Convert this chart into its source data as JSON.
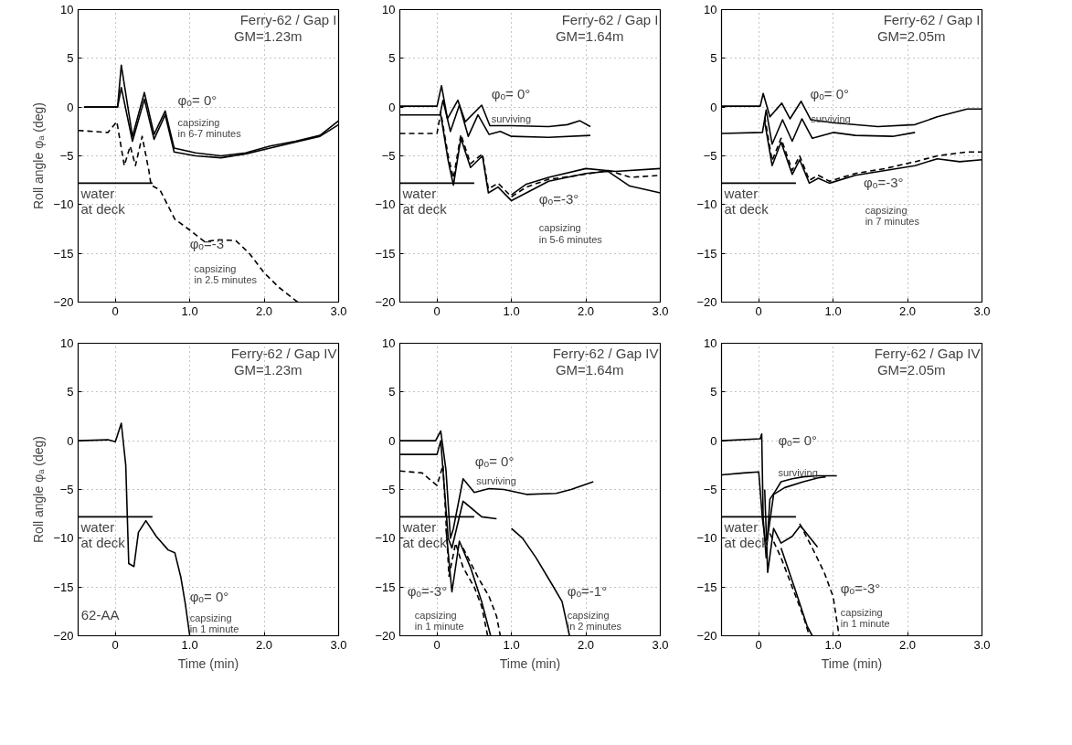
{
  "chart_data": [
    {
      "type": "line",
      "title": "Ferry-62 / Gap I",
      "subtitle": "GM=1.23m",
      "ylabel": "Roll angle φₐ (deg)",
      "xlim": [
        -0.5,
        3.0
      ],
      "ylim": [
        -20,
        10
      ],
      "xticks": [
        {
          "value": 0,
          "label": "0"
        },
        {
          "value": 1,
          "label": "1.0"
        },
        {
          "value": 2,
          "label": "2.0"
        },
        {
          "value": 3,
          "label": "3.0"
        }
      ],
      "yticks": [
        -20,
        -15,
        -10,
        -5,
        0,
        5,
        10
      ],
      "grid": true,
      "series": [
        {
          "color": "#000000",
          "line_style": "solid",
          "x": [
            -0.42,
            0.03,
            0.08,
            0.23,
            0.39,
            0.52,
            0.67,
            0.79,
            1.08,
            1.42,
            1.75,
            2.08,
            2.42,
            2.75,
            3.0
          ],
          "values": [
            0,
            0,
            4.3,
            -3,
            1.5,
            -2.8,
            -0.4,
            -4.2,
            -4.7,
            -5,
            -4.7,
            -4,
            -3.5,
            -2.9,
            -1.4
          ]
        },
        {
          "color": "#000000",
          "line_style": "solid",
          "x": [
            -0.42,
            0.03,
            0.08,
            0.23,
            0.39,
            0.52,
            0.67,
            0.79,
            1.08,
            1.42,
            1.75,
            2.08,
            2.42,
            2.75,
            3.0
          ],
          "values": [
            0,
            0,
            2.0,
            -3.5,
            0.8,
            -3.3,
            -0.8,
            -4.6,
            -5.0,
            -5.2,
            -4.8,
            -4.2,
            -3.6,
            -3.0,
            -1.8
          ]
        },
        {
          "color": "#000000",
          "line_style": "dashed",
          "x": [
            -0.5,
            -0.1,
            0.02,
            0.12,
            0.2,
            0.27,
            0.36,
            0.45,
            0.48,
            0.6,
            0.8,
            0.98,
            1.2,
            1.4,
            1.62,
            1.8,
            2.0,
            2.2,
            2.45
          ],
          "values": [
            -2.4,
            -2.6,
            -1.5,
            -6.0,
            -4,
            -6,
            -3,
            -6.5,
            -8,
            -8.5,
            -11.5,
            -12.5,
            -13.8,
            -13.6,
            -13.7,
            -15,
            -17,
            -18.5,
            -20
          ]
        },
        {
          "name": "water\nat deck",
          "color": "#000000",
          "line_style": "solid",
          "x": [
            -0.5,
            0.5
          ],
          "values": [
            -7.8,
            -7.8
          ]
        }
      ],
      "annotations": [
        "φₒ= 0°",
        "capsizing\nin 6-7 minutes",
        "φₒ=-3",
        "capsizing\nin 2.5 minutes"
      ]
    },
    {
      "type": "line",
      "title": "Ferry-62 / Gap I",
      "subtitle": "GM=1.64m",
      "xlim": [
        -0.5,
        3.0
      ],
      "ylim": [
        -20,
        10
      ],
      "xticks": [
        {
          "value": 0,
          "label": "0"
        },
        {
          "value": 1,
          "label": "1.0"
        },
        {
          "value": 2,
          "label": "2.0"
        },
        {
          "value": 3,
          "label": "3.0"
        }
      ],
      "yticks": [
        -20,
        -15,
        -10,
        -5,
        0,
        5,
        10
      ],
      "grid": true,
      "series": [
        {
          "color": "#000000",
          "line_style": "solid",
          "x": [
            -0.5,
            0.0,
            0.06,
            0.14,
            0.28,
            0.38,
            0.6,
            0.71,
            1.0,
            1.5,
            1.75,
            1.92,
            2.06
          ],
          "values": [
            0.1,
            0.1,
            2.2,
            -1.2,
            0.7,
            -1.5,
            0.2,
            -1.9,
            -1.9,
            -2.0,
            -1.8,
            -1.4,
            -2.0
          ]
        },
        {
          "color": "#000000",
          "line_style": "solid",
          "x": [
            -0.5,
            0.04,
            0.08,
            0.18,
            0.3,
            0.42,
            0.55,
            0.7,
            0.85,
            1.0,
            1.5,
            2.06
          ],
          "values": [
            -0.8,
            -0.8,
            0.7,
            -2.5,
            0.2,
            -3,
            -0.8,
            -2.8,
            -2.5,
            -3.0,
            -3.1,
            -2.9
          ]
        },
        {
          "color": "#000000",
          "line_style": "dashed",
          "x": [
            -0.5,
            0.0,
            0.05,
            0.15,
            0.22,
            0.32,
            0.45,
            0.61,
            0.69,
            0.82,
            1.0,
            1.2,
            1.5,
            1.9,
            2.3,
            2.6,
            3.0
          ],
          "values": [
            -2.7,
            -2.7,
            -0.5,
            -5,
            -7.3,
            -2.8,
            -5.8,
            -4.8,
            -8.4,
            -7.8,
            -9.2,
            -8.2,
            -7.4,
            -7.0,
            -6.5,
            -7.2,
            -7.0
          ]
        },
        {
          "color": "#000000",
          "line_style": "solid",
          "x": [
            0.05,
            0.15,
            0.22,
            0.32,
            0.45,
            0.61,
            0.69,
            0.82,
            1.0,
            1.5,
            2.0,
            2.3,
            2.59,
            3.0
          ],
          "values": [
            -0.8,
            -5.5,
            -8.0,
            -3.2,
            -6.2,
            -5.0,
            -8.8,
            -8.2,
            -9.6,
            -7.6,
            -6.8,
            -6.6,
            -8.1,
            -8.8
          ]
        },
        {
          "color": "#000000",
          "line_style": "solid",
          "x": [
            1.0,
            1.2,
            1.5,
            2.0,
            2.4,
            3.0
          ],
          "values": [
            -9.0,
            -7.9,
            -7.2,
            -6.3,
            -6.6,
            -6.3
          ]
        },
        {
          "name": "water\nat deck",
          "color": "#000000",
          "line_style": "solid",
          "x": [
            -0.5,
            0.5
          ],
          "values": [
            -7.8,
            -7.8
          ]
        }
      ],
      "annotations": [
        "φₒ= 0°",
        "surviving",
        "φₒ=-3°",
        "capsizing\nin 5-6 minutes"
      ]
    },
    {
      "type": "line",
      "title": "Ferry-62 / Gap I",
      "subtitle": "GM=2.05m",
      "xlim": [
        -0.5,
        3.0
      ],
      "ylim": [
        -20,
        10
      ],
      "xticks": [
        {
          "value": 0,
          "label": "0"
        },
        {
          "value": 1,
          "label": "1.0"
        },
        {
          "value": 2,
          "label": "2.0"
        },
        {
          "value": 3,
          "label": "3.0"
        }
      ],
      "yticks": [
        -20,
        -15,
        -10,
        -5,
        0,
        5,
        10
      ],
      "grid": true,
      "series": [
        {
          "color": "#000000",
          "line_style": "solid",
          "x": [
            -0.5,
            0.02,
            0.06,
            0.15,
            0.31,
            0.42,
            0.57,
            0.7,
            1.0,
            1.6,
            2.1,
            2.4,
            2.8,
            3.0
          ],
          "values": [
            0.1,
            0.1,
            1.4,
            -1.0,
            0.4,
            -1.2,
            0.6,
            -1.3,
            -1.6,
            -2.0,
            -1.8,
            -1.0,
            -0.2,
            -0.2
          ]
        },
        {
          "color": "#000000",
          "line_style": "solid",
          "x": [
            -0.5,
            0.05,
            0.1,
            0.18,
            0.32,
            0.45,
            0.58,
            0.72,
            1.0,
            1.3,
            1.8,
            2.1
          ],
          "values": [
            -2.7,
            -2.6,
            -0.3,
            -3.8,
            -1.3,
            -3.5,
            -1.2,
            -3.2,
            -2.6,
            -2.9,
            -3.0,
            -2.6
          ]
        },
        {
          "color": "#000000",
          "line_style": "dashed",
          "x": [
            0.08,
            0.18,
            0.3,
            0.45,
            0.55,
            0.68,
            0.8,
            0.95,
            1.3,
            1.7,
            2.1,
            2.4,
            2.8,
            3.0
          ],
          "values": [
            -1,
            -5.5,
            -3.2,
            -6.5,
            -5,
            -7.5,
            -7.0,
            -7.6,
            -6.8,
            -6.3,
            -5.6,
            -5.0,
            -4.6,
            -4.6
          ]
        },
        {
          "color": "#000000",
          "line_style": "solid",
          "x": [
            0.08,
            0.18,
            0.3,
            0.45,
            0.55,
            0.68,
            0.8,
            0.95,
            1.3,
            1.7,
            2.1,
            2.4,
            2.7,
            3.0
          ],
          "values": [
            -1.5,
            -6.0,
            -3.6,
            -6.9,
            -5.4,
            -7.8,
            -7.3,
            -7.8,
            -7.0,
            -6.5,
            -6.0,
            -5.3,
            -5.6,
            -5.4
          ]
        },
        {
          "name": "water\nat deck",
          "color": "#000000",
          "line_style": "solid",
          "x": [
            -0.5,
            0.5
          ],
          "values": [
            -7.8,
            -7.8
          ]
        }
      ],
      "annotations": [
        "φₒ= 0°",
        "surviving",
        "φₒ=-3°",
        "capsizing\nin 7 minutes"
      ]
    },
    {
      "type": "line",
      "title": "Ferry-62 / Gap IV",
      "subtitle": "GM=1.23m",
      "xlabel": "Time (min)",
      "ylabel": "Roll angle φₐ (deg)",
      "xlim": [
        -0.5,
        3.0
      ],
      "ylim": [
        -20,
        10
      ],
      "xticks": [
        {
          "value": 0,
          "label": "0"
        },
        {
          "value": 1,
          "label": "1.0"
        },
        {
          "value": 2,
          "label": "2.0"
        },
        {
          "value": 3,
          "label": "3.0"
        }
      ],
      "yticks": [
        -20,
        -15,
        -10,
        -5,
        0,
        5,
        10
      ],
      "grid": true,
      "series": [
        {
          "color": "#000000",
          "line_style": "solid",
          "x": [
            -0.5,
            -0.1,
            0.0,
            0.08,
            0.14,
            0.18,
            0.25,
            0.31,
            0.41,
            0.55,
            0.71,
            0.8,
            0.88,
            0.94,
            1.0
          ],
          "values": [
            0,
            0.1,
            -0.1,
            1.8,
            -2.5,
            -12.6,
            -12.9,
            -9.4,
            -8.2,
            -9.8,
            -11.2,
            -11.5,
            -14,
            -16.7,
            -20
          ]
        },
        {
          "name": "water\nat deck",
          "color": "#000000",
          "line_style": "solid",
          "x": [
            -0.5,
            0.5
          ],
          "values": [
            -7.8,
            -7.8
          ]
        }
      ],
      "annotations": [
        "φₒ= 0°",
        "capsizing\nin 1 minute",
        "62-AA"
      ]
    },
    {
      "type": "line",
      "title": "Ferry-62 / Gap IV",
      "subtitle": "GM=1.64m",
      "xlabel": "Time (min)",
      "xlim": [
        -0.5,
        3.0
      ],
      "ylim": [
        -20,
        10
      ],
      "xticks": [
        {
          "value": 0,
          "label": "0"
        },
        {
          "value": 1,
          "label": "1.0"
        },
        {
          "value": 2,
          "label": "2.0"
        },
        {
          "value": 3,
          "label": "3.0"
        }
      ],
      "yticks": [
        -20,
        -15,
        -10,
        -5,
        0,
        5,
        10
      ],
      "grid": true,
      "series": [
        {
          "color": "#000000",
          "line_style": "solid",
          "x": [
            -0.5,
            -0.02,
            0.05,
            0.12,
            0.18,
            0.22,
            0.35,
            0.5,
            0.7,
            0.9,
            1.2,
            1.6,
            1.8,
            2.1
          ],
          "values": [
            0,
            0,
            1.0,
            -3,
            -10,
            -9,
            -3.9,
            -5.3,
            -4.9,
            -5.0,
            -5.5,
            -5.4,
            -5.0,
            -4.2
          ]
        },
        {
          "color": "#000000",
          "line_style": "solid",
          "x": [
            -0.5,
            0.0,
            0.05,
            0.15,
            0.2,
            0.35,
            0.6,
            0.8,
            0.9,
            1.0,
            1.15,
            1.33,
            1.55,
            1.68,
            1.78
          ],
          "values": [
            -1.4,
            -1.4,
            0,
            -10,
            -11,
            -6.2,
            -7.8,
            -8.0,
            null,
            -9.0,
            -10,
            -12,
            -14.8,
            -16.5,
            -20
          ]
        },
        {
          "color": "#000000",
          "line_style": "dashed",
          "x": [
            -0.5,
            -0.2,
            0.0,
            0.08,
            0.16,
            0.25,
            0.35,
            0.5,
            0.6,
            0.68
          ],
          "values": [
            -3.1,
            -3.3,
            -4.6,
            -2.5,
            -13.9,
            -10.5,
            -13,
            -15,
            -17,
            -20
          ]
        },
        {
          "color": "#000000",
          "line_style": "solid",
          "x": [
            0.12,
            0.2,
            0.3,
            0.45,
            0.6,
            0.72
          ],
          "values": [
            -9,
            -15.5,
            -10.3,
            -13,
            -16.5,
            -20
          ]
        },
        {
          "color": "#000000",
          "line_style": "dashed",
          "x": [
            0.35,
            0.55,
            0.7,
            0.8,
            0.85
          ],
          "values": [
            -11,
            -14,
            -16,
            -18,
            -20
          ]
        },
        {
          "name": "water\nat deck",
          "color": "#000000",
          "line_style": "solid",
          "x": [
            -0.5,
            0.5
          ],
          "values": [
            -7.8,
            -7.8
          ]
        }
      ],
      "annotations": [
        "φₒ= 0°",
        "surviving",
        "φₒ=-3°",
        "capsizing\nin 1 minute",
        "φₒ=-1°",
        "capsizing\nin 2 minutes"
      ]
    },
    {
      "type": "line",
      "title": "Ferry-62 / Gap IV",
      "subtitle": "GM=2.05m",
      "xlabel": "Time (min)",
      "xlim": [
        -0.5,
        3.0
      ],
      "ylim": [
        -20,
        10
      ],
      "xticks": [
        {
          "value": 0,
          "label": "0"
        },
        {
          "value": 1,
          "label": "1.0"
        },
        {
          "value": 2,
          "label": "2.0"
        },
        {
          "value": 3,
          "label": "3.0"
        }
      ],
      "yticks": [
        -20,
        -15,
        -10,
        -5,
        0,
        5,
        10
      ],
      "grid": true,
      "series": [
        {
          "color": "#000000",
          "line_style": "solid",
          "x": [
            -0.5,
            0.02,
            0.04,
            0.06,
            0.1,
            0.15,
            0.22,
            0.3,
            0.45,
            0.6,
            0.78,
            1.05
          ],
          "values": [
            0,
            0.2,
            0.7,
            -8,
            -12,
            -6,
            -5.2,
            -4.2,
            -3.9,
            -3.7,
            -3.6,
            -3.6
          ]
        },
        {
          "color": "#000000",
          "line_style": "solid",
          "x": [
            -0.5,
            -0.2,
            0.0,
            0.05,
            0.1,
            0.2,
            0.35,
            0.6,
            0.8,
            0.9
          ],
          "values": [
            -3.5,
            -3.3,
            -3.2,
            -8,
            -11,
            -5.5,
            -4.8,
            -4.2,
            -3.8,
            -3.7
          ]
        },
        {
          "color": "#000000",
          "line_style": "solid",
          "x": [
            0.08,
            0.12,
            0.2,
            0.3,
            0.45,
            0.56,
            0.79
          ],
          "values": [
            -5,
            -13.5,
            -9,
            -10.5,
            -9.8,
            -8.7,
            -10.9
          ]
        },
        {
          "color": "#000000",
          "line_style": "dashed",
          "x": [
            0.15,
            0.3,
            0.45,
            0.6,
            0.68
          ],
          "values": [
            -9.5,
            -12,
            -15,
            -18,
            -20
          ]
        },
        {
          "color": "#000000",
          "line_style": "solid",
          "x": [
            0.3,
            0.5,
            0.65,
            0.72
          ],
          "values": [
            -11,
            -15.5,
            -19,
            -20
          ]
        },
        {
          "color": "#000000",
          "line_style": "dashed",
          "x": [
            0.55,
            0.72,
            0.88,
            1.0,
            1.08
          ],
          "values": [
            -8.5,
            -11,
            -13.5,
            -16,
            -20
          ]
        },
        {
          "name": "water\nat deck",
          "color": "#000000",
          "line_style": "solid",
          "x": [
            -0.5,
            0.5
          ],
          "values": [
            -7.8,
            -7.8
          ]
        }
      ],
      "annotations": [
        "φₒ= 0°",
        "surviving",
        "φₒ=-3°",
        "capsizing\nin 1 minute"
      ]
    }
  ]
}
